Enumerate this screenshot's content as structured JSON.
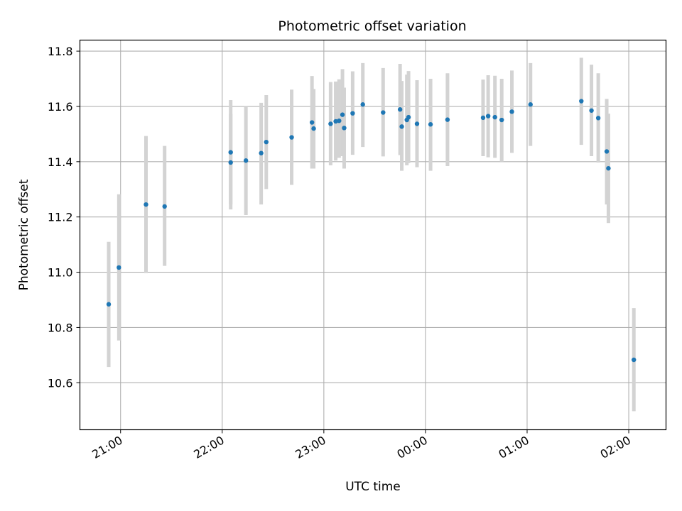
{
  "chart_data": {
    "type": "scatter",
    "title": "Photometric offset variation",
    "xlabel": "UTC time",
    "ylabel": "Photometric offset",
    "x_unit": "minutes since 20:00 UTC (display only)",
    "xlim_min": [
      36,
      382
    ],
    "ylim": [
      10.43,
      11.84
    ],
    "grid": true,
    "x_ticks": [
      {
        "label": "21:00",
        "min": 60
      },
      {
        "label": "22:00",
        "min": 120
      },
      {
        "label": "23:00",
        "min": 180
      },
      {
        "label": "00:00",
        "min": 240
      },
      {
        "label": "01:00",
        "min": 300
      },
      {
        "label": "02:00",
        "min": 360
      }
    ],
    "y_ticks": [
      {
        "label": "10.6",
        "value": 10.6
      },
      {
        "label": "10.8",
        "value": 10.8
      },
      {
        "label": "11.0",
        "value": 11.0
      },
      {
        "label": "11.2",
        "value": 11.2
      },
      {
        "label": "11.4",
        "value": 11.4
      },
      {
        "label": "11.6",
        "value": 11.6
      },
      {
        "label": "11.8",
        "value": 11.8
      }
    ],
    "point_color": "#1f77b4",
    "errorbar_color": "#d3d3d3",
    "points": [
      {
        "t": "20:53",
        "y": 10.884,
        "lo": 10.657,
        "hi": 11.11
      },
      {
        "t": "20:59",
        "y": 11.017,
        "lo": 10.753,
        "hi": 11.282
      },
      {
        "t": "21:15",
        "y": 11.245,
        "lo": 10.997,
        "hi": 11.493
      },
      {
        "t": "21:26",
        "y": 11.238,
        "lo": 11.023,
        "hi": 11.457
      },
      {
        "t": "22:05",
        "y": 11.397,
        "lo": 11.227,
        "hi": 11.574
      },
      {
        "t": "22:05",
        "y": 11.434,
        "lo": 11.245,
        "hi": 11.623
      },
      {
        "t": "22:14",
        "y": 11.404,
        "lo": 11.207,
        "hi": 11.602
      },
      {
        "t": "22:23",
        "y": 11.431,
        "lo": 11.245,
        "hi": 11.613
      },
      {
        "t": "22:26",
        "y": 11.471,
        "lo": 11.301,
        "hi": 11.641
      },
      {
        "t": "22:41",
        "y": 11.488,
        "lo": 11.316,
        "hi": 11.661
      },
      {
        "t": "22:53",
        "y": 11.542,
        "lo": 11.375,
        "hi": 11.71
      },
      {
        "t": "22:54",
        "y": 11.52,
        "lo": 11.375,
        "hi": 11.663
      },
      {
        "t": "23:04",
        "y": 11.537,
        "lo": 11.387,
        "hi": 11.688
      },
      {
        "t": "23:07",
        "y": 11.546,
        "lo": 11.404,
        "hi": 11.69
      },
      {
        "t": "23:09",
        "y": 11.548,
        "lo": 11.414,
        "hi": 11.698
      },
      {
        "t": "23:11",
        "y": 11.57,
        "lo": 11.42,
        "hi": 11.735
      },
      {
        "t": "23:12",
        "y": 11.522,
        "lo": 11.375,
        "hi": 11.668
      },
      {
        "t": "23:17",
        "y": 11.575,
        "lo": 11.425,
        "hi": 11.727
      },
      {
        "t": "23:23",
        "y": 11.607,
        "lo": 11.453,
        "hi": 11.757
      },
      {
        "t": "23:35",
        "y": 11.578,
        "lo": 11.419,
        "hi": 11.739
      },
      {
        "t": "23:45",
        "y": 11.589,
        "lo": 11.424,
        "hi": 11.754
      },
      {
        "t": "23:46",
        "y": 11.527,
        "lo": 11.367,
        "hi": 11.692
      },
      {
        "t": "23:49",
        "y": 11.551,
        "lo": 11.387,
        "hi": 11.715
      },
      {
        "t": "23:50",
        "y": 11.561,
        "lo": 11.395,
        "hi": 11.728
      },
      {
        "t": "23:55",
        "y": 11.537,
        "lo": 11.38,
        "hi": 11.695
      },
      {
        "t": "00:03",
        "y": 11.535,
        "lo": 11.367,
        "hi": 11.7
      },
      {
        "t": "00:13",
        "y": 11.552,
        "lo": 11.384,
        "hi": 11.72
      },
      {
        "t": "00:34",
        "y": 11.559,
        "lo": 11.42,
        "hi": 11.697
      },
      {
        "t": "00:37",
        "y": 11.565,
        "lo": 11.416,
        "hi": 11.713
      },
      {
        "t": "00:41",
        "y": 11.561,
        "lo": 11.414,
        "hi": 11.711
      },
      {
        "t": "00:45",
        "y": 11.551,
        "lo": 11.4,
        "hi": 11.7
      },
      {
        "t": "00:51",
        "y": 11.581,
        "lo": 11.432,
        "hi": 11.73
      },
      {
        "t": "01:02",
        "y": 11.607,
        "lo": 11.457,
        "hi": 11.757
      },
      {
        "t": "01:32",
        "y": 11.619,
        "lo": 11.461,
        "hi": 11.776
      },
      {
        "t": "01:38",
        "y": 11.585,
        "lo": 11.42,
        "hi": 11.751
      },
      {
        "t": "01:42",
        "y": 11.558,
        "lo": 11.397,
        "hi": 11.72
      },
      {
        "t": "01:47",
        "y": 11.437,
        "lo": 11.245,
        "hi": 11.627
      },
      {
        "t": "01:48",
        "y": 11.376,
        "lo": 11.178,
        "hi": 11.574
      },
      {
        "t": "02:03",
        "y": 10.683,
        "lo": 10.497,
        "hi": 10.87
      }
    ]
  }
}
